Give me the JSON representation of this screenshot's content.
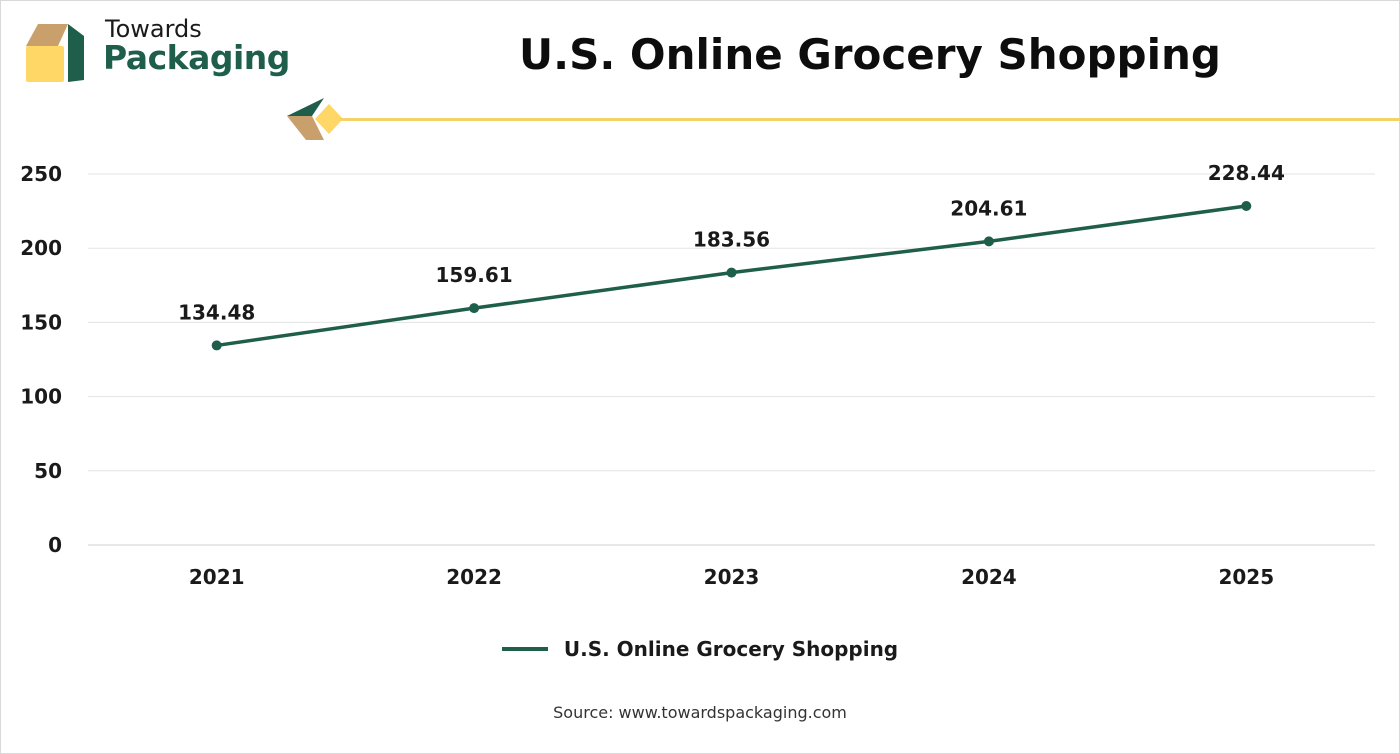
{
  "brand": {
    "line1": "Towards",
    "line2": "Packaging",
    "colors": {
      "green": "#1e5e4a",
      "tan": "#c9a06b",
      "yellow": "#fed766"
    }
  },
  "footer": {
    "source": "Source: www.towardspackaging.com"
  },
  "chart_data": {
    "type": "line",
    "title": "U.S. Online Grocery Shopping",
    "categories": [
      "2021",
      "2022",
      "2023",
      "2024",
      "2025"
    ],
    "series": [
      {
        "name": "U.S. Online Grocery Shopping",
        "values": [
          134.48,
          159.61,
          183.56,
          204.61,
          228.44
        ],
        "color": "#1e5e4a"
      }
    ],
    "ylim": [
      0,
      250
    ],
    "yticks": [
      0,
      50,
      100,
      150,
      200,
      250
    ],
    "grid": true,
    "legend": "bottom",
    "xlabel": "",
    "ylabel": ""
  }
}
